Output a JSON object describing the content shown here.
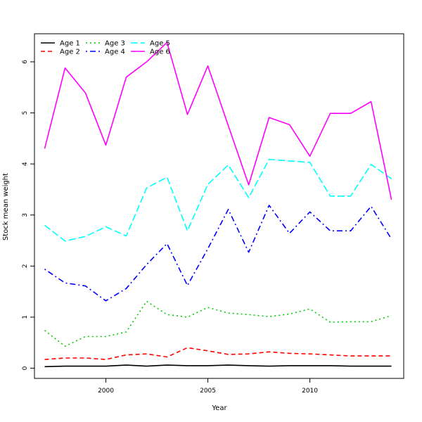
{
  "chart_data": {
    "type": "line",
    "xlabel": "Year",
    "ylabel": "Stock mean weight",
    "xlim": [
      1996.5,
      2014.6
    ],
    "ylim": [
      -0.2,
      6.55
    ],
    "xticks": [
      2000,
      2005,
      2010
    ],
    "yticks": [
      0,
      1,
      2,
      3,
      4,
      5,
      6
    ],
    "grid": false,
    "legend_position": "top-left",
    "x": [
      1997,
      1998,
      1999,
      2000,
      2001,
      2002,
      2003,
      2004,
      2005,
      2006,
      2007,
      2008,
      2009,
      2010,
      2011,
      2012,
      2013,
      2014
    ],
    "series": [
      {
        "name": "Age 1",
        "color": "#000000",
        "dash": "solid",
        "values": [
          0.03,
          0.04,
          0.04,
          0.04,
          0.06,
          0.04,
          0.06,
          0.05,
          0.05,
          0.06,
          0.05,
          0.04,
          0.05,
          0.05,
          0.05,
          0.04,
          0.04,
          0.04
        ]
      },
      {
        "name": "Age 2",
        "color": "#ff0000",
        "dash": "dashed",
        "values": [
          0.17,
          0.2,
          0.2,
          0.17,
          0.26,
          0.28,
          0.22,
          0.4,
          0.34,
          0.27,
          0.28,
          0.32,
          0.29,
          0.28,
          0.26,
          0.24,
          0.24,
          0.24
        ]
      },
      {
        "name": "Age 3",
        "color": "#00cd00",
        "dash": "dotted",
        "values": [
          0.74,
          0.43,
          0.62,
          0.62,
          0.71,
          1.31,
          1.05,
          1.0,
          1.19,
          1.08,
          1.05,
          1.01,
          1.06,
          1.16,
          0.9,
          0.91,
          0.91,
          1.03
        ]
      },
      {
        "name": "Age 4",
        "color": "#0000ff",
        "dash": "dotdash",
        "values": [
          1.94,
          1.67,
          1.61,
          1.32,
          1.56,
          2.03,
          2.44,
          1.62,
          2.34,
          3.11,
          2.27,
          3.19,
          2.64,
          3.06,
          2.69,
          2.69,
          3.17,
          2.53
        ]
      },
      {
        "name": "Age 5",
        "color": "#00ffff",
        "dash": "longdash",
        "values": [
          2.8,
          2.49,
          2.58,
          2.77,
          2.59,
          3.53,
          3.74,
          2.69,
          3.6,
          3.98,
          3.34,
          4.09,
          4.06,
          4.03,
          3.37,
          3.37,
          3.99,
          3.71
        ]
      },
      {
        "name": "Age 6",
        "color": "#ff00ff",
        "dash": "solid",
        "values": [
          4.3,
          5.88,
          5.39,
          4.37,
          5.7,
          6.0,
          6.38,
          4.97,
          5.92,
          4.75,
          3.59,
          4.91,
          4.77,
          4.15,
          4.99,
          4.99,
          5.22,
          3.3
        ]
      }
    ]
  }
}
